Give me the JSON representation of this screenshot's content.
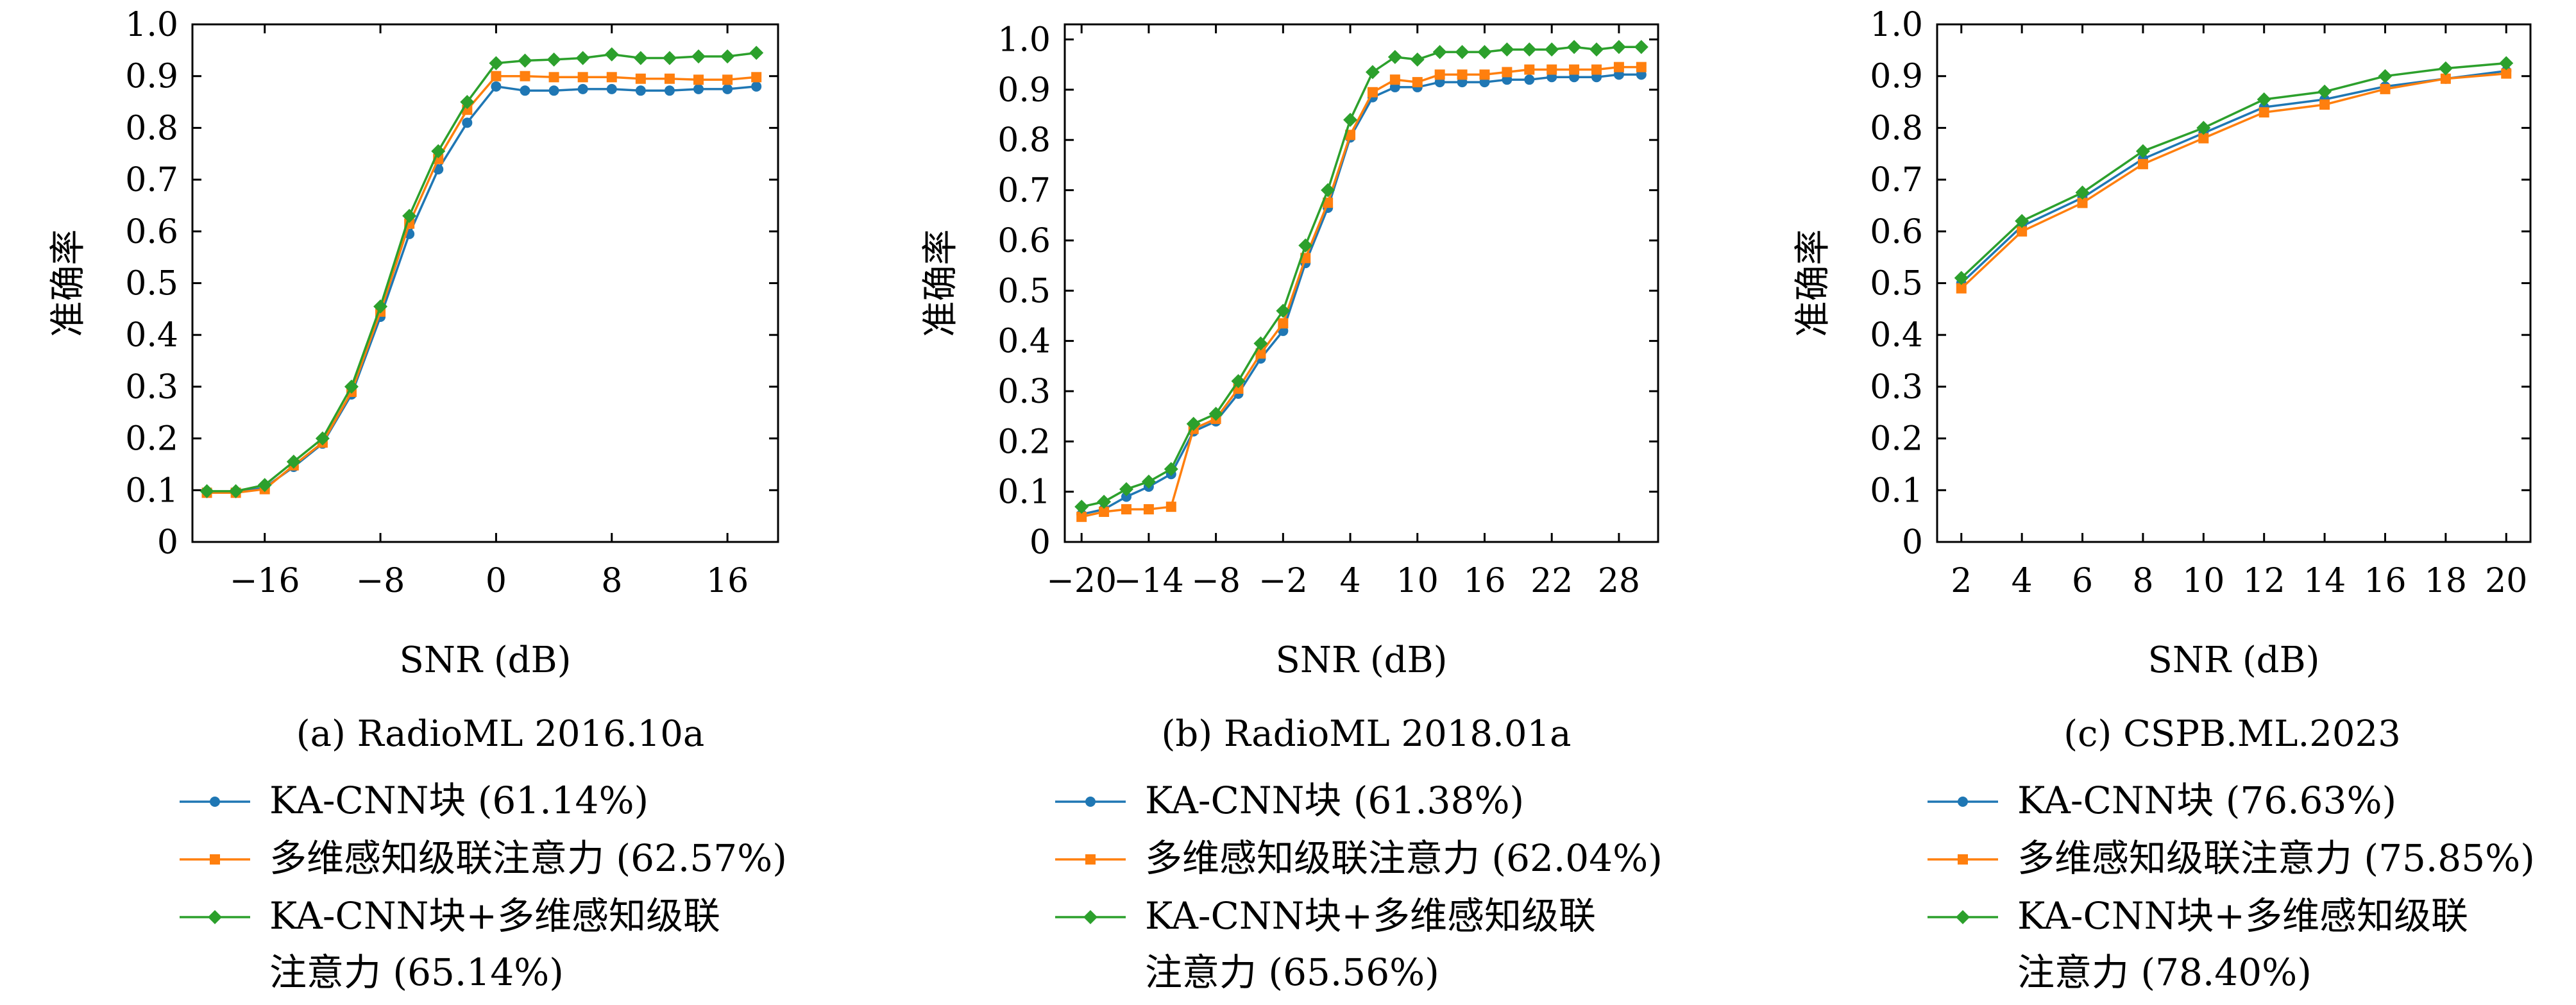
{
  "colors": {
    "series_1": "#1f77b4",
    "series_2": "#ff7f0e",
    "series_3": "#2ca02c"
  },
  "chart_data": [
    {
      "type": "line",
      "caption": "(a) RadioML 2016.10a",
      "xlabel": "SNR (dB)",
      "ylabel": "准确率",
      "xlim": [
        -21,
        19.5
      ],
      "ylim": [
        0,
        1.0
      ],
      "xticks": [
        -16,
        -8,
        0,
        8,
        16
      ],
      "yticks": [
        0,
        0.1,
        0.2,
        0.3,
        0.4,
        0.5,
        0.6,
        0.7,
        0.8,
        0.9,
        1.0
      ],
      "ytick_labels": [
        "0",
        "0.1",
        "0.2",
        "0.3",
        "0.4",
        "0.5",
        "0.6",
        "0.7",
        "0.8",
        "0.9",
        "1.0"
      ],
      "grid": false,
      "legend": "below",
      "x": [
        -20,
        -18,
        -16,
        -14,
        -12,
        -10,
        -8,
        -6,
        -4,
        -2,
        0,
        2,
        4,
        6,
        8,
        10,
        12,
        14,
        16,
        18
      ],
      "series": [
        {
          "name": "KA-CNN块 (61.14%)",
          "color": "#1f77b4",
          "marker": "circle",
          "values": [
            0.095,
            0.095,
            0.105,
            0.145,
            0.19,
            0.285,
            0.435,
            0.595,
            0.72,
            0.81,
            0.88,
            0.872,
            0.872,
            0.875,
            0.875,
            0.872,
            0.872,
            0.875,
            0.875,
            0.88
          ]
        },
        {
          "name": "多维感知级联注意力 (62.57%)",
          "color": "#ff7f0e",
          "marker": "square",
          "values": [
            0.095,
            0.095,
            0.102,
            0.148,
            0.192,
            0.29,
            0.445,
            0.615,
            0.74,
            0.835,
            0.9,
            0.9,
            0.898,
            0.898,
            0.898,
            0.895,
            0.895,
            0.893,
            0.893,
            0.898
          ]
        },
        {
          "name": "KA-CNN块+多维感知级联注意力 (65.14%)",
          "legend_lines": [
            "KA-CNN块+多维感知级联",
            "注意力 (65.14%)"
          ],
          "color": "#2ca02c",
          "marker": "diamond",
          "values": [
            0.098,
            0.098,
            0.11,
            0.155,
            0.2,
            0.3,
            0.455,
            0.63,
            0.755,
            0.85,
            0.925,
            0.93,
            0.932,
            0.935,
            0.942,
            0.935,
            0.935,
            0.938,
            0.938,
            0.945
          ]
        }
      ]
    },
    {
      "type": "line",
      "caption": "(b) RadioML 2018.01a",
      "xlabel": "SNR (dB)",
      "ylabel": "准确率",
      "xlim": [
        -21.5,
        31.5
      ],
      "ylim": [
        0,
        1.03
      ],
      "xticks": [
        -20,
        -14,
        -8,
        -2,
        4,
        10,
        16,
        22,
        28
      ],
      "yticks": [
        0,
        0.1,
        0.2,
        0.3,
        0.4,
        0.5,
        0.6,
        0.7,
        0.8,
        0.9,
        1.0
      ],
      "ytick_labels": [
        "0",
        "0.1",
        "0.2",
        "0.3",
        "0.4",
        "0.5",
        "0.6",
        "0.7",
        "0.8",
        "0.9",
        "1.0"
      ],
      "grid": false,
      "legend": "below",
      "x": [
        -20,
        -18,
        -16,
        -14,
        -12,
        -10,
        -8,
        -6,
        -4,
        -2,
        0,
        2,
        4,
        6,
        8,
        10,
        12,
        14,
        16,
        18,
        20,
        22,
        24,
        26,
        28,
        30
      ],
      "series": [
        {
          "name": "KA-CNN块 (61.38%)",
          "color": "#1f77b4",
          "marker": "circle",
          "values": [
            0.055,
            0.065,
            0.09,
            0.11,
            0.135,
            0.22,
            0.24,
            0.295,
            0.365,
            0.42,
            0.555,
            0.665,
            0.805,
            0.885,
            0.905,
            0.905,
            0.915,
            0.915,
            0.915,
            0.92,
            0.92,
            0.925,
            0.925,
            0.925,
            0.93,
            0.93
          ]
        },
        {
          "name": "多维感知级联注意力 (62.04%)",
          "color": "#ff7f0e",
          "marker": "square",
          "values": [
            0.05,
            0.06,
            0.065,
            0.065,
            0.07,
            0.225,
            0.245,
            0.305,
            0.375,
            0.435,
            0.565,
            0.675,
            0.81,
            0.895,
            0.92,
            0.915,
            0.93,
            0.93,
            0.93,
            0.935,
            0.94,
            0.94,
            0.94,
            0.94,
            0.945,
            0.945
          ]
        },
        {
          "name": "KA-CNN块+多维感知级联注意力 (65.56%)",
          "legend_lines": [
            "KA-CNN块+多维感知级联",
            "注意力 (65.56%)"
          ],
          "color": "#2ca02c",
          "marker": "diamond",
          "values": [
            0.07,
            0.08,
            0.105,
            0.12,
            0.145,
            0.235,
            0.255,
            0.32,
            0.395,
            0.46,
            0.59,
            0.7,
            0.84,
            0.935,
            0.965,
            0.96,
            0.975,
            0.975,
            0.975,
            0.98,
            0.98,
            0.98,
            0.985,
            0.98,
            0.985,
            0.985
          ]
        }
      ]
    },
    {
      "type": "line",
      "caption": "(c) CSPB.ML.2023",
      "xlabel": "SNR (dB)",
      "ylabel": "准确率",
      "xlim": [
        1.2,
        20.8
      ],
      "ylim": [
        0,
        1.0
      ],
      "xticks": [
        2,
        4,
        6,
        8,
        10,
        12,
        14,
        16,
        18,
        20
      ],
      "yticks": [
        0,
        0.1,
        0.2,
        0.3,
        0.4,
        0.5,
        0.6,
        0.7,
        0.8,
        0.9,
        1.0
      ],
      "ytick_labels": [
        "0",
        "0.1",
        "0.2",
        "0.3",
        "0.4",
        "0.5",
        "0.6",
        "0.7",
        "0.8",
        "0.9",
        "1.0"
      ],
      "grid": false,
      "legend": "below",
      "x": [
        2,
        4,
        6,
        8,
        10,
        12,
        14,
        16,
        18,
        20
      ],
      "series": [
        {
          "name": "KA-CNN块 (76.63%)",
          "color": "#1f77b4",
          "marker": "circle",
          "values": [
            0.5,
            0.61,
            0.665,
            0.74,
            0.79,
            0.84,
            0.855,
            0.88,
            0.895,
            0.91
          ]
        },
        {
          "name": "多维感知级联注意力 (75.85%)",
          "color": "#ff7f0e",
          "marker": "square",
          "values": [
            0.49,
            0.6,
            0.655,
            0.73,
            0.78,
            0.83,
            0.845,
            0.875,
            0.895,
            0.905
          ]
        },
        {
          "name": "KA-CNN块+多维感知级联注意力 (78.40%)",
          "legend_lines": [
            "KA-CNN块+多维感知级联",
            "注意力 (78.40%)"
          ],
          "color": "#2ca02c",
          "marker": "diamond",
          "values": [
            0.51,
            0.62,
            0.675,
            0.755,
            0.8,
            0.855,
            0.87,
            0.9,
            0.915,
            0.925
          ]
        }
      ]
    }
  ]
}
